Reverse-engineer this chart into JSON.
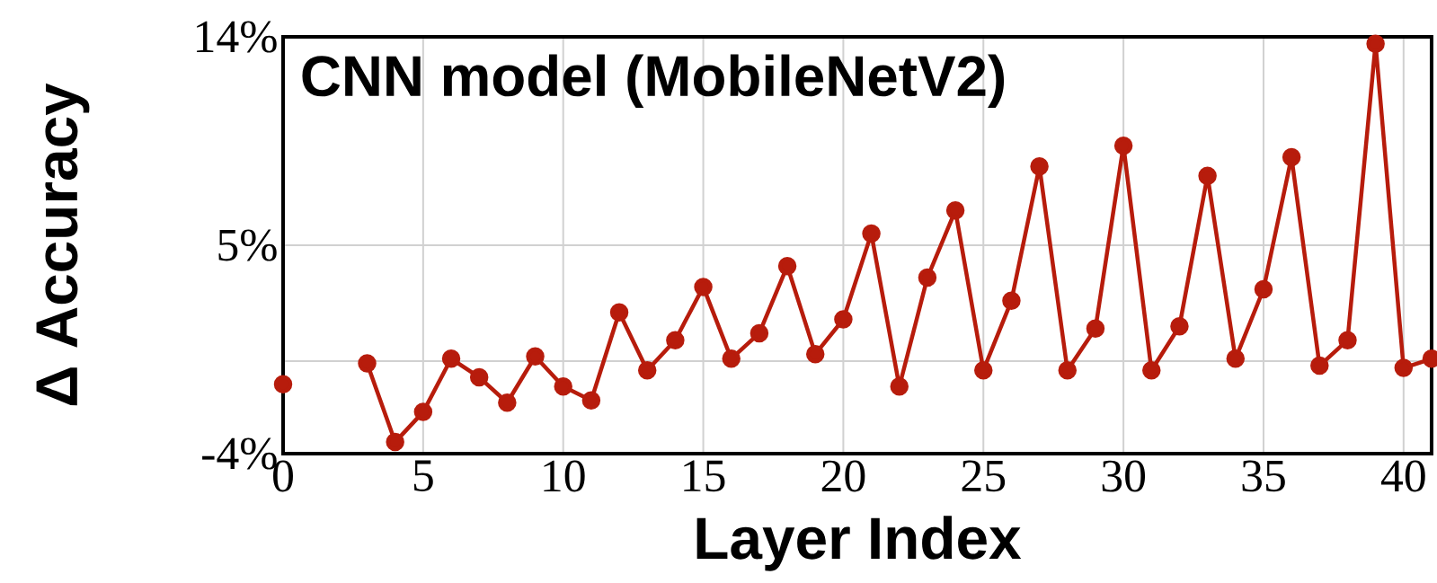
{
  "chart_data": {
    "type": "line",
    "title": "CNN model (MobileNetV2)",
    "xlabel": "Layer Index",
    "ylabel": "Δ Accuracy",
    "x": [
      0,
      1,
      2,
      3,
      4,
      5,
      6,
      7,
      8,
      9,
      10,
      11,
      12,
      13,
      14,
      15,
      16,
      17,
      18,
      19,
      20,
      21,
      22,
      23,
      24,
      25,
      26,
      27,
      28,
      29,
      30,
      31,
      32,
      33,
      34,
      35,
      36,
      37,
      38,
      39,
      40,
      41
    ],
    "values": [
      -1.0,
      null,
      null,
      -0.1,
      -3.5,
      -2.2,
      0.1,
      -0.7,
      -1.8,
      0.2,
      -1.1,
      -1.7,
      2.1,
      -0.4,
      0.9,
      3.2,
      0.1,
      1.2,
      4.1,
      0.3,
      1.8,
      5.5,
      -1.1,
      3.6,
      6.5,
      -0.4,
      2.6,
      8.4,
      -0.4,
      1.4,
      9.3,
      -0.4,
      1.5,
      8.0,
      0.1,
      3.1,
      8.8,
      -0.2,
      0.9,
      13.7,
      -0.3,
      0.1
    ],
    "color": "#b71c0c",
    "marker": "circle",
    "line_style": "solid",
    "grid": true,
    "xlim": [
      0,
      41
    ],
    "xticks": [
      0,
      5,
      10,
      15,
      20,
      25,
      30,
      35,
      40
    ],
    "ylim": [
      -4,
      14
    ],
    "yticks": [
      {
        "value": -4,
        "label": "-4%"
      },
      {
        "value": 0,
        "label": null
      },
      {
        "value": 5,
        "label": "5%"
      },
      {
        "value": 14,
        "label": "14%"
      }
    ]
  }
}
